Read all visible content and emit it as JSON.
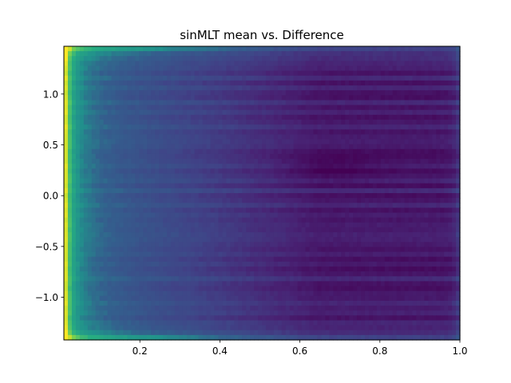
{
  "chart_data": {
    "type": "heatmap",
    "title": "sinMLT mean vs. Difference",
    "xlabel": "",
    "ylabel": "",
    "xlim": [
      0.01,
      1.0
    ],
    "ylim": [
      -1.42,
      1.47
    ],
    "x_ticks": [
      {
        "value": 0.2,
        "label": "0.2"
      },
      {
        "value": 0.4,
        "label": "0.4"
      },
      {
        "value": 0.6,
        "label": "0.6"
      },
      {
        "value": 0.8,
        "label": "0.8"
      },
      {
        "value": 1.0,
        "label": "1.0"
      }
    ],
    "y_ticks": [
      {
        "value": -1.0,
        "label": "−1.0"
      },
      {
        "value": -0.5,
        "label": "−0.5"
      },
      {
        "value": 0.0,
        "label": "0.0"
      },
      {
        "value": 0.5,
        "label": "0.5"
      },
      {
        "value": 1.0,
        "label": "1.0"
      }
    ],
    "colormap": "viridis",
    "grid": false,
    "legend": "none",
    "nx": 100,
    "ny": 60,
    "value_range": [
      0,
      1
    ],
    "description_of_field": "Values high (yellow) near x~0.01 and at y extremes ~±1.4; low (purple) for x in 0.55–0.95, with darkest around x~0.68, y~0.28; horizontal banding in y; moderate teal band near x~0.98"
  }
}
